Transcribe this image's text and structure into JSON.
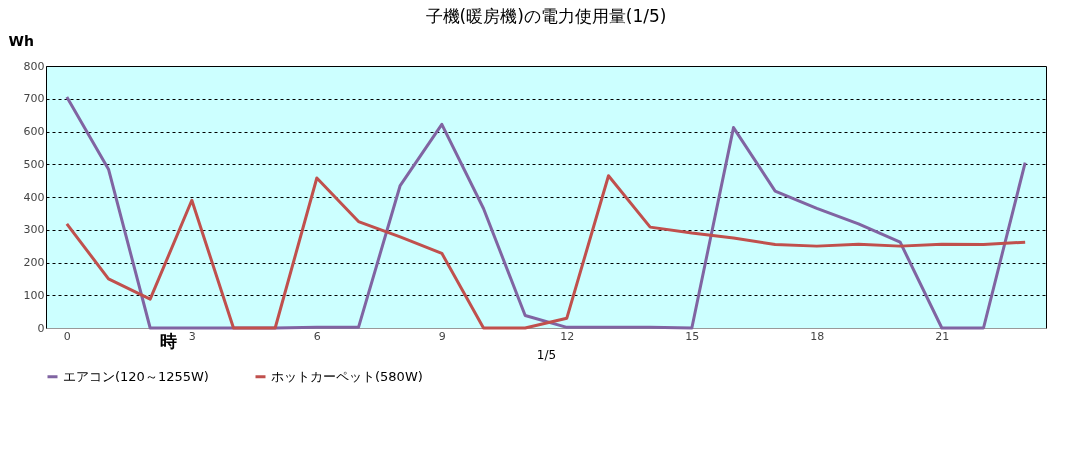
{
  "chart_data": {
    "type": "line",
    "title": "子機(暖房機)の電力使用量(1/5)",
    "ylabel": "Wh",
    "xlabel": "1/5",
    "annotations": [
      "時"
    ],
    "categories": [
      "0",
      null,
      null,
      "3",
      null,
      null,
      "6",
      null,
      null,
      "9",
      null,
      null,
      "12",
      null,
      null,
      "15",
      null,
      null,
      "18",
      null,
      null,
      "21",
      null,
      null
    ],
    "series": [
      {
        "name": "エアコン(120～1255W)",
        "color": "#8064a2",
        "values": [
          705,
          485,
          0,
          0,
          0,
          0,
          2,
          2,
          435,
          622,
          365,
          38,
          2,
          2,
          2,
          0,
          612,
          418,
          365,
          318,
          262,
          0,
          0,
          505
        ]
      },
      {
        "name": "ホットカーペット(580W)",
        "color": "#c0504d",
        "values": [
          318,
          150,
          88,
          390,
          0,
          0,
          458,
          325,
          278,
          228,
          0,
          0,
          30,
          465,
          308,
          290,
          275,
          255,
          250,
          256,
          250,
          256,
          255,
          262
        ]
      }
    ],
    "ylim": [
      0,
      800
    ],
    "yticks": [
      0,
      100,
      200,
      300,
      400,
      500,
      600,
      700,
      800
    ],
    "grid": "y",
    "legend": "bottom",
    "line_style": "solid",
    "marker": "none"
  }
}
